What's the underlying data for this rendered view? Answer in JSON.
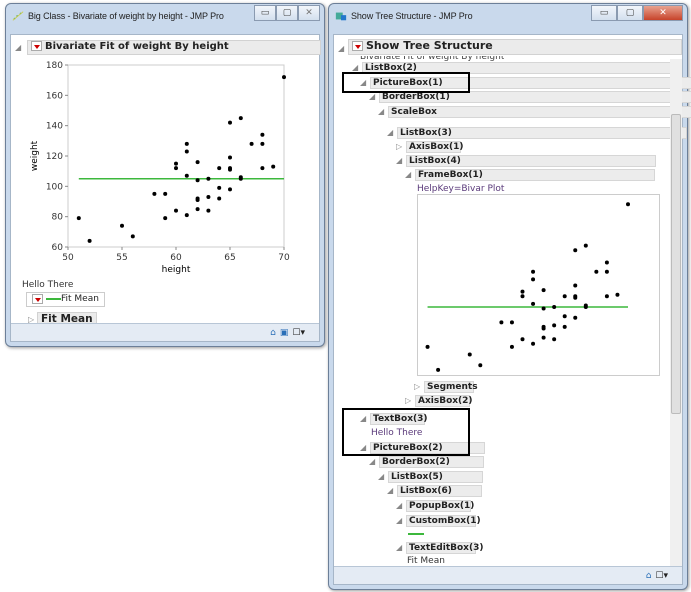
{
  "left_window": {
    "title": "Big Class - Bivariate of weight by height - JMP Pro",
    "outline_title": "Bivariate Fit of weight By height",
    "hello": "Hello There",
    "legend_label": "Fit Mean",
    "fit_outline": "Fit Mean"
  },
  "right_window": {
    "title": "Show Tree Structure - JMP Pro",
    "outline_title": "Show Tree Structure",
    "clipped_text": "Bivariate Fit of weight By height",
    "nodes": {
      "listbox2": "ListBox(2)",
      "picturebox1": "PictureBox(1)",
      "borderbox1": "BorderBox(1)",
      "scalebox": "ScaleBox",
      "listbox3": "ListBox(3)",
      "axisbox1": "AxisBox(1)",
      "listbox4": "ListBox(4)",
      "framebox1": "FrameBox(1)",
      "helpkey": "HelpKey=Bivar Plot",
      "segments": "Segments",
      "axisbox2": "AxisBox(2)",
      "textbox3": "TextBox(3)",
      "hello": "Hello There",
      "picturebox2": "PictureBox(2)",
      "borderbox2": "BorderBox(2)",
      "listbox5": "ListBox(5)",
      "listbox6": "ListBox(6)",
      "popupbox1": "PopupBox(1)",
      "custombox1": "CustomBox(1)",
      "texteditbox3": "TextEditBox(3)",
      "fitmean": "Fit Mean"
    }
  },
  "colors": {
    "fit_line": "#3cb83c",
    "points": "#000000"
  },
  "chart_data": {
    "type": "scatter",
    "xlabel": "height",
    "ylabel": "weight",
    "xlim": [
      50,
      70
    ],
    "ylim": [
      60,
      180
    ],
    "xticks": [
      50,
      55,
      60,
      65,
      70
    ],
    "yticks": [
      60,
      80,
      100,
      120,
      140,
      160,
      180
    ],
    "fit_mean": 105,
    "points": [
      [
        51,
        79
      ],
      [
        52,
        64
      ],
      [
        55,
        74
      ],
      [
        56,
        67
      ],
      [
        58,
        95
      ],
      [
        59,
        95
      ],
      [
        59,
        79
      ],
      [
        60,
        115
      ],
      [
        60,
        112
      ],
      [
        60,
        84
      ],
      [
        61,
        128
      ],
      [
        61,
        123
      ],
      [
        61,
        107
      ],
      [
        61,
        81
      ],
      [
        62,
        116
      ],
      [
        62,
        104
      ],
      [
        62,
        92
      ],
      [
        62,
        91
      ],
      [
        62,
        85
      ],
      [
        63,
        105
      ],
      [
        63,
        93
      ],
      [
        63,
        84
      ],
      [
        64,
        112
      ],
      [
        64,
        99
      ],
      [
        64,
        92
      ],
      [
        65,
        142
      ],
      [
        65,
        119
      ],
      [
        65,
        112
      ],
      [
        65,
        111
      ],
      [
        65,
        98
      ],
      [
        66,
        145
      ],
      [
        66,
        106
      ],
      [
        66,
        105
      ],
      [
        67,
        128
      ],
      [
        68,
        134
      ],
      [
        68,
        128
      ],
      [
        68,
        112
      ],
      [
        69,
        113
      ],
      [
        70,
        172
      ]
    ]
  }
}
